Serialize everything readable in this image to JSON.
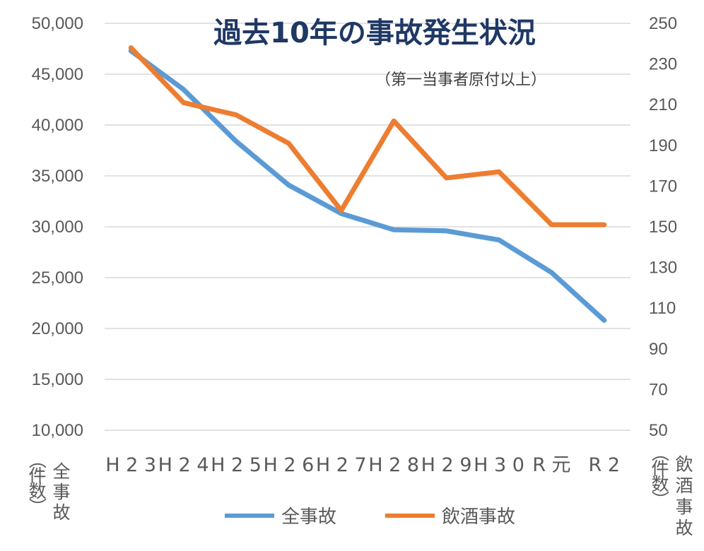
{
  "chart_data": {
    "type": "line",
    "title": "過去10年の事故発生状況",
    "subtitle": "（第一当事者原付以上）",
    "categories": [
      "H23",
      "H24",
      "H25",
      "H26",
      "H27",
      "H28",
      "H29",
      "H30",
      "R元",
      "R2"
    ],
    "series": [
      {
        "name": "全事故",
        "axis": "left",
        "color": "#5b9bd5",
        "values": [
          47300,
          43500,
          38400,
          34100,
          31300,
          29700,
          29600,
          28700,
          25500,
          20800
        ]
      },
      {
        "name": "飲酒事故",
        "axis": "right",
        "color": "#ed7d31",
        "values": [
          238,
          211,
          205,
          191,
          158,
          202,
          174,
          177,
          151,
          151
        ]
      }
    ],
    "y_left": {
      "min": 10000,
      "max": 50000,
      "ticks": [
        "10,000",
        "15,000",
        "20,000",
        "25,000",
        "30,000",
        "35,000",
        "40,000",
        "45,000",
        "50,000"
      ],
      "label_top": "全事故",
      "label_bottom": "（件数）"
    },
    "y_right": {
      "min": 50,
      "max": 250,
      "ticks": [
        "50",
        "70",
        "90",
        "110",
        "130",
        "150",
        "170",
        "190",
        "210",
        "230",
        "250"
      ],
      "label_top": "飲酒事故",
      "label_bottom": "（件数）"
    },
    "grid": true,
    "legend": "bottom-center"
  }
}
